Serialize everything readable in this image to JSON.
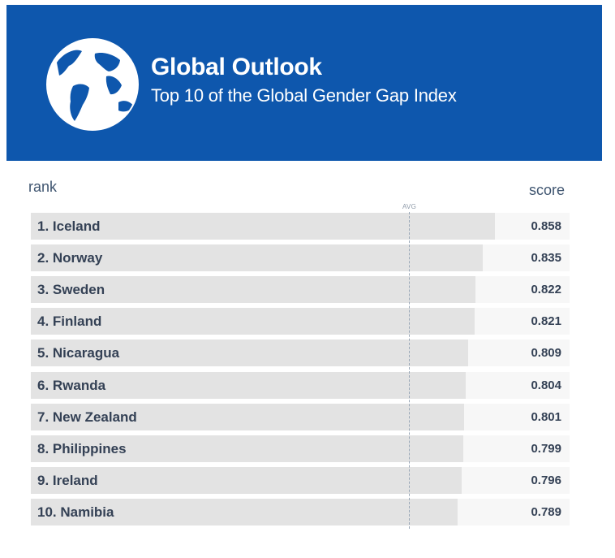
{
  "header": {
    "title": "Global Outlook",
    "subtitle": "Top 10 of the Global Gender Gap Index",
    "background_color": "#0e57ad",
    "icon": "globe-icon"
  },
  "columns": {
    "rank_label": "rank",
    "score_label": "score",
    "avg_label": "AVG"
  },
  "chart_data": {
    "type": "bar",
    "orientation": "horizontal",
    "title": "Global Outlook",
    "subtitle": "Top 10 of the Global Gender Gap Index",
    "xlabel": "score",
    "ylabel": "rank",
    "categories": [
      "1. Iceland",
      "2. Norway",
      "3. Sweden",
      "4. Finland",
      "5. Nicaragua",
      "6. Rwanda",
      "7. New Zealand",
      "8. Philippines",
      "9. Ireland",
      "10. Namibia"
    ],
    "values": [
      0.858,
      0.835,
      0.822,
      0.821,
      0.809,
      0.804,
      0.801,
      0.799,
      0.796,
      0.789
    ],
    "score_labels": [
      "0.858",
      "0.835",
      "0.822",
      "0.821",
      "0.809",
      "0.804",
      "0.801",
      "0.799",
      "0.796",
      "0.789"
    ],
    "average_marker": {
      "label": "AVG"
    },
    "grid": false,
    "legend": "none",
    "colors": {
      "bar": "#e3e3e3",
      "row_track": "#f7f7f7",
      "text": "#344155",
      "avg_line": "#9aa8b8"
    }
  }
}
